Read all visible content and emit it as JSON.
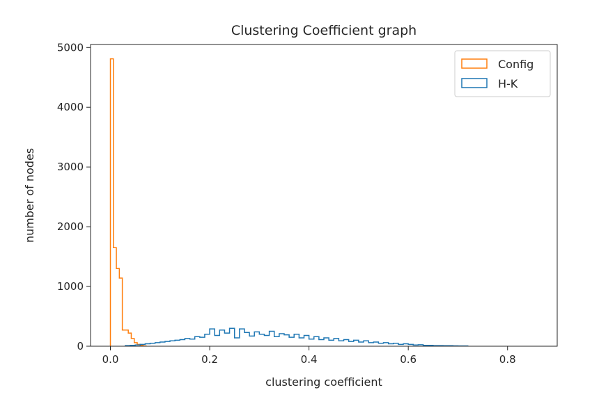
{
  "chart_data": {
    "type": "histogram",
    "title": "Clustering Coefficient graph",
    "xlabel": "clustering coefficient",
    "ylabel": "number of nodes",
    "xlim": [
      -0.04,
      0.9
    ],
    "ylim": [
      0,
      5050
    ],
    "xticks": [
      0.0,
      0.2,
      0.4,
      0.6,
      0.8
    ],
    "xtick_labels": [
      "0.0",
      "0.2",
      "0.4",
      "0.6",
      "0.8"
    ],
    "yticks": [
      0,
      1000,
      2000,
      3000,
      4000,
      5000
    ],
    "ytick_labels": [
      "0",
      "1000",
      "2000",
      "3000",
      "4000",
      "5000"
    ],
    "grid": false,
    "legend_position": "top-right",
    "series": [
      {
        "name": "Config",
        "color": "#ff7f0e",
        "bin_edges": [
          0.0,
          0.006,
          0.012,
          0.018,
          0.024,
          0.03,
          0.036,
          0.042,
          0.048,
          0.054,
          0.06,
          0.066,
          0.072
        ],
        "counts": [
          4810,
          1650,
          1300,
          1140,
          270,
          270,
          220,
          130,
          60,
          30,
          15,
          5
        ]
      },
      {
        "name": "H-K",
        "color": "#1f77b4",
        "bin_edges": [
          0.03,
          0.04,
          0.05,
          0.06,
          0.07,
          0.08,
          0.09,
          0.1,
          0.11,
          0.12,
          0.13,
          0.14,
          0.15,
          0.16,
          0.17,
          0.18,
          0.19,
          0.2,
          0.21,
          0.22,
          0.23,
          0.24,
          0.25,
          0.26,
          0.27,
          0.28,
          0.29,
          0.3,
          0.31,
          0.32,
          0.33,
          0.34,
          0.35,
          0.36,
          0.37,
          0.38,
          0.39,
          0.4,
          0.41,
          0.42,
          0.43,
          0.44,
          0.45,
          0.46,
          0.47,
          0.48,
          0.49,
          0.5,
          0.51,
          0.52,
          0.53,
          0.54,
          0.55,
          0.56,
          0.57,
          0.58,
          0.59,
          0.6,
          0.61,
          0.62,
          0.63,
          0.64,
          0.65,
          0.66,
          0.67,
          0.68,
          0.69,
          0.7,
          0.71,
          0.72
        ],
        "counts": [
          10,
          15,
          20,
          30,
          40,
          50,
          60,
          70,
          80,
          90,
          100,
          110,
          130,
          120,
          160,
          150,
          200,
          290,
          180,
          270,
          220,
          300,
          140,
          290,
          230,
          170,
          240,
          200,
          180,
          250,
          160,
          210,
          190,
          150,
          200,
          140,
          180,
          120,
          160,
          110,
          140,
          100,
          130,
          90,
          110,
          80,
          100,
          70,
          90,
          60,
          70,
          50,
          60,
          40,
          50,
          30,
          40,
          30,
          20,
          25,
          15,
          15,
          10,
          10,
          8,
          8,
          6,
          5,
          4
        ]
      }
    ]
  }
}
